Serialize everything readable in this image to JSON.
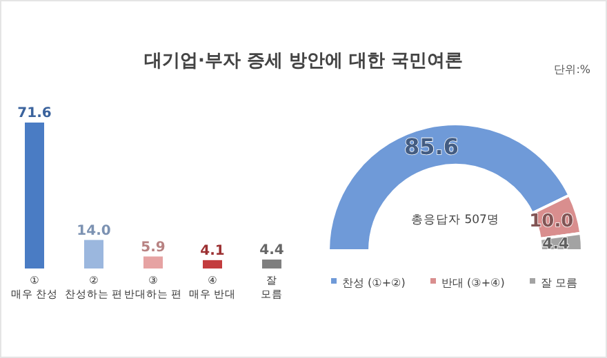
{
  "chart_data": [
    {
      "type": "bar",
      "title": "대기업·부자 증세 방안에 대한 국민여론",
      "annotations": [
        "단위:%"
      ],
      "categories": [
        "① 매우 찬성",
        "② 찬성하는 편",
        "③ 반대하는 편",
        "④ 매우 반대",
        "잘 모름"
      ],
      "values": [
        71.6,
        14.0,
        5.9,
        4.1,
        4.4
      ],
      "value_labels": [
        "71.6",
        "14.0",
        "5.9",
        "4.1",
        "4.4"
      ],
      "colors": [
        "#4a7cc4",
        "#9bb7de",
        "#e6a3a3",
        "#c33c3e",
        "#7f7f7f"
      ]
    },
    {
      "type": "donut",
      "annotations": [
        "총응답자 507명"
      ],
      "categories": [
        "찬성 (①+②)",
        "반대 (③+④)",
        "잘 모름"
      ],
      "values": [
        85.6,
        10.0,
        4.4
      ],
      "value_labels": [
        "85.6",
        "10.0",
        "4.4"
      ],
      "colors": [
        "#6f9ad8",
        "#d98e8e",
        "#a3a3a3"
      ],
      "legend": "bottom"
    }
  ]
}
